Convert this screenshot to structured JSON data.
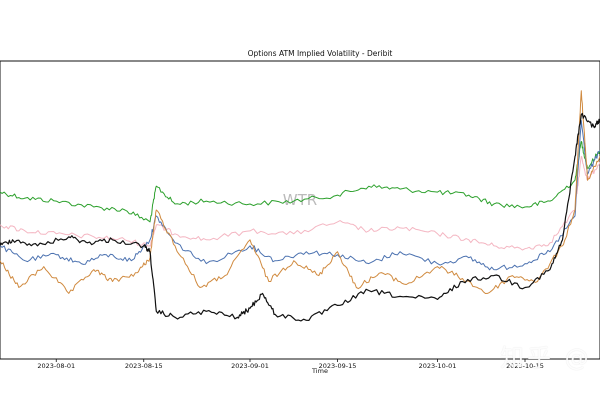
{
  "chart_data": {
    "type": "line",
    "title": "Options ATM Implied Volatility - Deribit",
    "xlabel": "Time",
    "ylabel": "",
    "watermark": "WTR",
    "x_ticks": [
      "2023-08-01",
      "2023-08-15",
      "2023-09-01",
      "2023-09-15",
      "2023-10-01",
      "2023-10-15"
    ],
    "x_tick_labels": [
      "2023-08-01",
      "2023-08-15",
      "2023-09-01",
      "2023-09-15",
      "2023-10-01",
      "2023-10-15"
    ],
    "x_range": [
      "2023-07-23",
      "2023-10-27"
    ],
    "y_range": [
      0,
      100
    ],
    "grid": false,
    "series": [
      {
        "color": "#2ca02c",
        "points": [
          [
            "2023-07-23",
            56
          ],
          [
            "2023-07-27",
            54
          ],
          [
            "2023-08-01",
            53
          ],
          [
            "2023-08-07",
            51
          ],
          [
            "2023-08-12",
            50
          ],
          [
            "2023-08-16",
            46
          ],
          [
            "2023-08-17",
            58
          ],
          [
            "2023-08-20",
            52
          ],
          [
            "2023-08-25",
            53
          ],
          [
            "2023-09-01",
            52
          ],
          [
            "2023-09-08",
            53
          ],
          [
            "2023-09-15",
            55
          ],
          [
            "2023-09-20",
            58
          ],
          [
            "2023-09-25",
            57
          ],
          [
            "2023-10-01",
            56
          ],
          [
            "2023-10-06",
            55
          ],
          [
            "2023-10-10",
            52
          ],
          [
            "2023-10-15",
            51
          ],
          [
            "2023-10-19",
            53
          ],
          [
            "2023-10-23",
            60
          ],
          [
            "2023-10-24",
            73
          ],
          [
            "2023-10-25",
            64
          ],
          [
            "2023-10-27",
            70
          ]
        ]
      },
      {
        "color": "#f4b6c2",
        "points": [
          [
            "2023-07-23",
            45
          ],
          [
            "2023-07-27",
            43
          ],
          [
            "2023-08-01",
            42
          ],
          [
            "2023-08-07",
            41
          ],
          [
            "2023-08-12",
            40
          ],
          [
            "2023-08-16",
            38
          ],
          [
            "2023-08-17",
            45
          ],
          [
            "2023-08-20",
            42
          ],
          [
            "2023-08-25",
            40
          ],
          [
            "2023-09-01",
            43
          ],
          [
            "2023-09-08",
            42
          ],
          [
            "2023-09-15",
            46
          ],
          [
            "2023-09-20",
            43
          ],
          [
            "2023-09-25",
            44
          ],
          [
            "2023-10-01",
            42
          ],
          [
            "2023-10-06",
            40
          ],
          [
            "2023-10-10",
            38
          ],
          [
            "2023-10-15",
            37
          ],
          [
            "2023-10-19",
            39
          ],
          [
            "2023-10-23",
            50
          ],
          [
            "2023-10-24",
            68
          ],
          [
            "2023-10-25",
            60
          ],
          [
            "2023-10-27",
            66
          ]
        ]
      },
      {
        "color": "#4c72b0",
        "points": [
          [
            "2023-07-23",
            38
          ],
          [
            "2023-07-27",
            33
          ],
          [
            "2023-08-01",
            35
          ],
          [
            "2023-08-05",
            32
          ],
          [
            "2023-08-09",
            35
          ],
          [
            "2023-08-13",
            33
          ],
          [
            "2023-08-16",
            40
          ],
          [
            "2023-08-17",
            48
          ],
          [
            "2023-08-20",
            39
          ],
          [
            "2023-08-25",
            32
          ],
          [
            "2023-09-01",
            38
          ],
          [
            "2023-09-05",
            33
          ],
          [
            "2023-09-10",
            36
          ],
          [
            "2023-09-15",
            35
          ],
          [
            "2023-09-20",
            32
          ],
          [
            "2023-09-25",
            36
          ],
          [
            "2023-10-01",
            32
          ],
          [
            "2023-10-06",
            34
          ],
          [
            "2023-10-10",
            30
          ],
          [
            "2023-10-15",
            32
          ],
          [
            "2023-10-19",
            36
          ],
          [
            "2023-10-23",
            48
          ],
          [
            "2023-10-24",
            80
          ],
          [
            "2023-10-25",
            62
          ],
          [
            "2023-10-27",
            70
          ]
        ]
      },
      {
        "color": "#d08a3f",
        "points": [
          [
            "2023-07-23",
            33
          ],
          [
            "2023-07-26",
            24
          ],
          [
            "2023-07-30",
            31
          ],
          [
            "2023-08-03",
            22
          ],
          [
            "2023-08-07",
            30
          ],
          [
            "2023-08-10",
            26
          ],
          [
            "2023-08-14",
            29
          ],
          [
            "2023-08-16",
            34
          ],
          [
            "2023-08-17",
            50
          ],
          [
            "2023-08-20",
            38
          ],
          [
            "2023-08-24",
            24
          ],
          [
            "2023-08-28",
            28
          ],
          [
            "2023-09-01",
            40
          ],
          [
            "2023-09-04",
            26
          ],
          [
            "2023-09-08",
            33
          ],
          [
            "2023-09-12",
            28
          ],
          [
            "2023-09-15",
            36
          ],
          [
            "2023-09-18",
            24
          ],
          [
            "2023-09-22",
            29
          ],
          [
            "2023-09-26",
            25
          ],
          [
            "2023-10-01",
            31
          ],
          [
            "2023-10-05",
            27
          ],
          [
            "2023-10-09",
            22
          ],
          [
            "2023-10-13",
            28
          ],
          [
            "2023-10-17",
            26
          ],
          [
            "2023-10-21",
            38
          ],
          [
            "2023-10-23",
            50
          ],
          [
            "2023-10-24",
            90
          ],
          [
            "2023-10-25",
            60
          ],
          [
            "2023-10-27",
            68
          ]
        ]
      },
      {
        "color": "#111111",
        "points": [
          [
            "2023-07-23",
            38
          ],
          [
            "2023-07-25",
            40
          ],
          [
            "2023-07-29",
            38
          ],
          [
            "2023-08-03",
            41
          ],
          [
            "2023-08-06",
            39
          ],
          [
            "2023-08-10",
            40
          ],
          [
            "2023-08-15",
            38
          ],
          [
            "2023-08-16",
            36
          ],
          [
            "2023-08-17",
            16
          ],
          [
            "2023-08-20",
            14
          ],
          [
            "2023-08-25",
            16
          ],
          [
            "2023-08-30",
            14
          ],
          [
            "2023-09-01",
            17
          ],
          [
            "2023-09-03",
            22
          ],
          [
            "2023-09-05",
            15
          ],
          [
            "2023-09-10",
            13
          ],
          [
            "2023-09-15",
            18
          ],
          [
            "2023-09-20",
            23
          ],
          [
            "2023-09-25",
            21
          ],
          [
            "2023-10-01",
            20
          ],
          [
            "2023-10-05",
            26
          ],
          [
            "2023-10-10",
            28
          ],
          [
            "2023-10-15",
            24
          ],
          [
            "2023-10-19",
            30
          ],
          [
            "2023-10-21",
            40
          ],
          [
            "2023-10-23",
            68
          ],
          [
            "2023-10-24",
            82
          ],
          [
            "2023-10-26",
            78
          ],
          [
            "2023-10-27",
            80
          ]
        ]
      }
    ]
  },
  "colors": {
    "axes": "#111111",
    "background": "#ffffff"
  },
  "overlay_watermark": "知乎 @"
}
